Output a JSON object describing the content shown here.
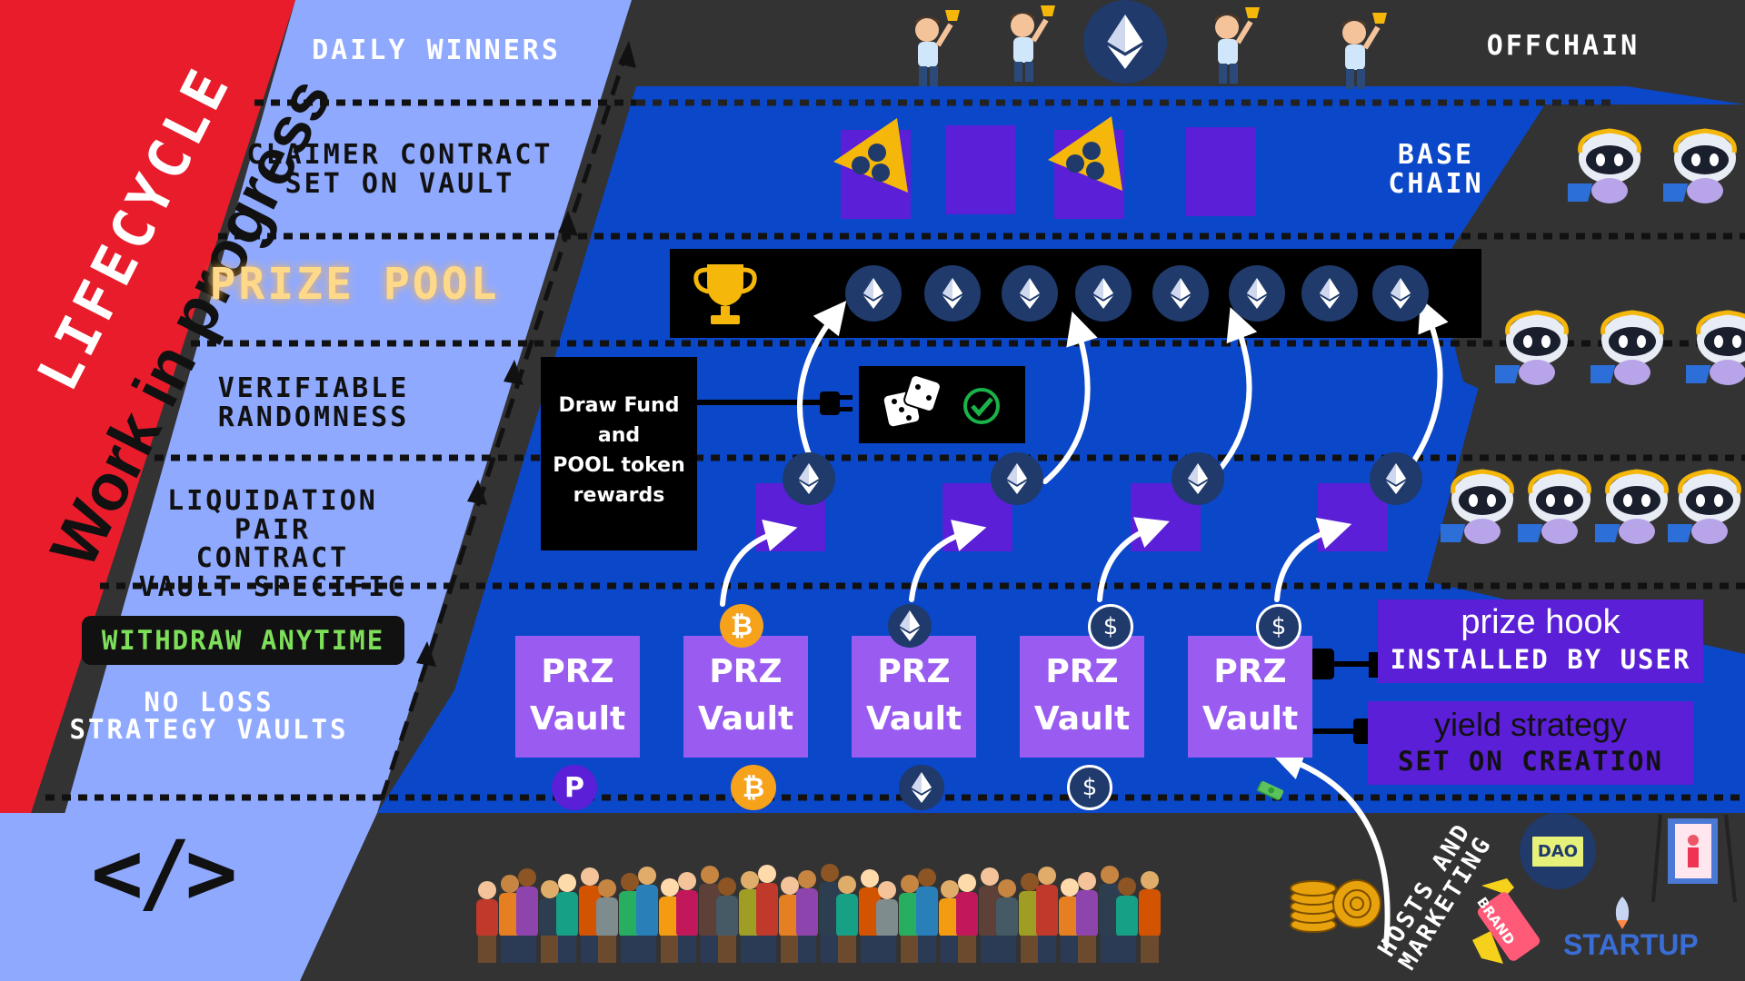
{
  "side_banner": {
    "title": "LIFECYCLE",
    "subtitle": "Work in progress"
  },
  "left_labels": {
    "daily_winners": "DAILY WINNERS",
    "claimer_line1": "CLAIMER CONTRACT",
    "claimer_line2": "SET ON VAULT",
    "prize_pool": "PRIZE POOL",
    "randomness_line1": "VERIFIABLE",
    "randomness_line2": "RANDOMNESS",
    "liquidation_line1": "LIQUIDATION PAIR",
    "liquidation_line2": "CONTRACT",
    "liquidation_line3": "VAULT SPECIFIC",
    "withdraw": "WITHDRAW ANYTIME",
    "noloss_line1": "NO LOSS",
    "noloss_line2": "STRATEGY VAULTS",
    "code_symbol": "</>"
  },
  "right_labels": {
    "offchain": "OFFCHAIN",
    "base_line1": "BASE",
    "base_line2": "CHAIN",
    "prize_hook_line1": "prize hook",
    "prize_hook_line2": "INSTALLED BY USER",
    "yield_line1": "yield strategy",
    "yield_line2": "SET ON CREATION",
    "hosts_line1": "HOSTS AND",
    "hosts_line2": "MARKETING",
    "dao": "DAO",
    "brand": "BRAND",
    "startup": "STARTUP"
  },
  "draw_box": {
    "line1": "Draw Fund",
    "line2": "and",
    "line3": "POOL token",
    "line4": "rewards"
  },
  "vaults": [
    {
      "line1": "PRZ",
      "line2": "Vault",
      "top_coin": "",
      "bottom_coin": "P"
    },
    {
      "line1": "PRZ",
      "line2": "Vault",
      "top_coin": "btc",
      "bottom_coin": "btc"
    },
    {
      "line1": "PRZ",
      "line2": "Vault",
      "top_coin": "eth",
      "bottom_coin": "eth"
    },
    {
      "line1": "PRZ",
      "line2": "Vault",
      "top_coin": "usd",
      "bottom_coin": "usd"
    },
    {
      "line1": "PRZ",
      "line2": "Vault",
      "top_coin": "usd",
      "bottom_coin": "cash"
    }
  ],
  "coin_symbols": {
    "btc": "₿",
    "usd": "$",
    "pool": "P"
  },
  "colors": {
    "red": "#e91c2b",
    "light_blue": "#8fa9ff",
    "royal_blue": "#0b47c9",
    "purple_vault": "#9a5cf0",
    "dark_purple": "#5a1fd6",
    "background": "#333333",
    "prize_gold": "#ffd98a",
    "withdraw_green": "#7ddf5a",
    "btc_orange": "#f7a21b"
  },
  "icons": [
    "ethereum-icon",
    "bitcoin-icon",
    "dollar-icon",
    "trophy-icon",
    "dice-icon",
    "check-icon",
    "plug-icon",
    "robot-icon",
    "winner-person-icon",
    "crowd-icon",
    "code-icon",
    "coins-icon",
    "cash-icon",
    "pooltogether-triangle-icon"
  ]
}
